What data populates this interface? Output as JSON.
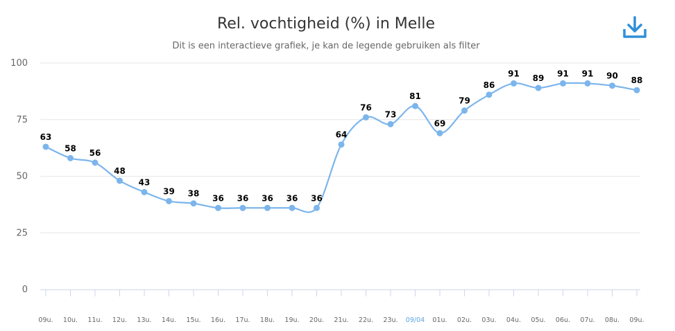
{
  "chart_data": {
    "type": "line",
    "title": "Rel. vochtigheid (%) in Melle",
    "subtitle": "Dit is een interactieve grafiek, je kan de legende gebruiken als filter",
    "categories": [
      "09u.",
      "10u.",
      "11u.",
      "12u.",
      "13u.",
      "14u.",
      "15u.",
      "16u.",
      "17u.",
      "18u.",
      "19u.",
      "20u.",
      "21u.",
      "22u.",
      "23u.",
      "09/04",
      "01u.",
      "02u.",
      "03u.",
      "04u.",
      "05u.",
      "06u.",
      "07u.",
      "08u.",
      "09u."
    ],
    "highlight_categories": [
      "09/04"
    ],
    "values": [
      63,
      58,
      56,
      48,
      43,
      39,
      38,
      36,
      36,
      36,
      36,
      36,
      64,
      76,
      73,
      81,
      69,
      79,
      86,
      91,
      89,
      91,
      91,
      90,
      88
    ],
    "ylim": [
      0,
      100
    ],
    "yticks": [
      0,
      25,
      50,
      75,
      100
    ],
    "grid": true,
    "line_color": "#7cb5ec",
    "highlight_color": "#5aa5e6"
  },
  "toolbar": {
    "download_icon": "download-icon",
    "icon_color": "#2f8fd8"
  }
}
